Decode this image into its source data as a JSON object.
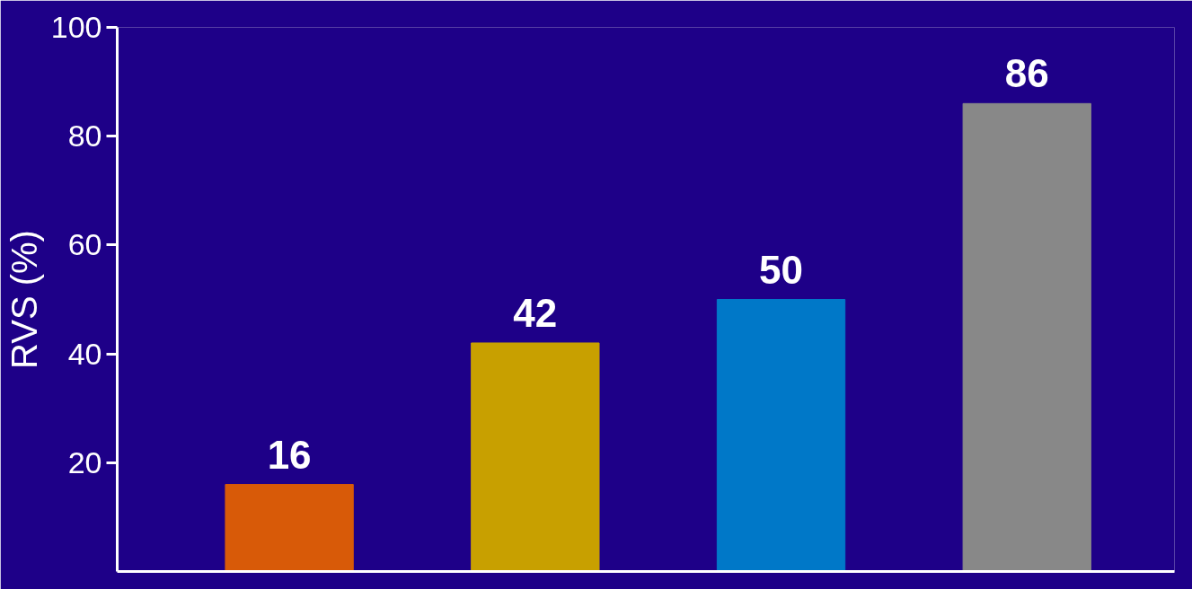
{
  "chart_data": {
    "type": "bar",
    "ylabel": "RVS (%)",
    "categories": [
      null,
      null,
      null,
      null
    ],
    "values": [
      16,
      42,
      50,
      86
    ],
    "colors": [
      "#d85a08",
      "#c8a000",
      "#0078c8",
      "#888888"
    ],
    "ylim": [
      0,
      100
    ],
    "yticks": [
      20,
      40,
      60,
      80,
      100
    ],
    "data_labels": true,
    "grid": false,
    "tick_labels": "y"
  }
}
